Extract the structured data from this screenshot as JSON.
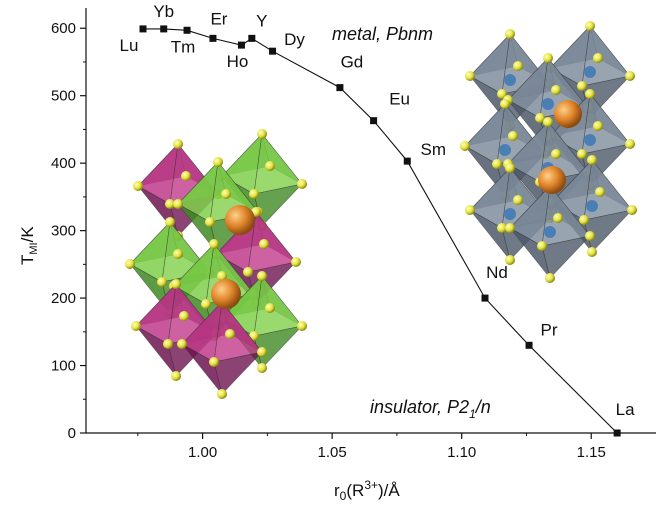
{
  "chart_data": {
    "type": "scatter",
    "x_label_parts": {
      "base": "r",
      "sub": "0",
      "mid": "(R",
      "sup": "3+",
      "tail": ")/Å"
    },
    "y_label_parts": {
      "base": "T",
      "sub": "MI",
      "tail": "/K"
    },
    "xlim": [
      0.955,
      1.175
    ],
    "ylim": [
      0,
      630
    ],
    "x_ticks": [
      "1.00",
      "1.05",
      "1.10",
      "1.15"
    ],
    "x_tick_values": [
      1.0,
      1.05,
      1.1,
      1.15
    ],
    "y_ticks": [
      "0",
      "100",
      "200",
      "300",
      "400",
      "500",
      "600"
    ],
    "y_tick_values": [
      0,
      100,
      200,
      300,
      400,
      500,
      600
    ],
    "grid": false,
    "series": [
      {
        "points": [
          {
            "label": "Lu",
            "x": 0.977,
            "y": 599
          },
          {
            "label": "Yb",
            "x": 0.985,
            "y": 599
          },
          {
            "label": "Tm",
            "x": 0.994,
            "y": 597
          },
          {
            "label": "Er",
            "x": 1.004,
            "y": 585
          },
          {
            "label": "Ho",
            "x": 1.015,
            "y": 575
          },
          {
            "label": "Y",
            "x": 1.019,
            "y": 585
          },
          {
            "label": "Dy",
            "x": 1.027,
            "y": 566
          },
          {
            "label": "Gd",
            "x": 1.053,
            "y": 512
          },
          {
            "label": "Eu",
            "x": 1.066,
            "y": 463
          },
          {
            "label": "Sm",
            "x": 1.079,
            "y": 403
          },
          {
            "label": "Nd",
            "x": 1.109,
            "y": 200
          },
          {
            "label": "Pr",
            "x": 1.126,
            "y": 130
          },
          {
            "label": "La",
            "x": 1.16,
            "y": 0
          }
        ]
      }
    ],
    "annotations": {
      "metal": "metal, Pbnm",
      "insulator_main": "insulator, P2",
      "insulator_sub": "1",
      "insulator_tail": "/n"
    },
    "colors": {
      "line": "#111111",
      "octa_magenta": "#b0287a",
      "octa_green": "#6cc23a",
      "octa_gray": "#6f7d8e",
      "vertex_yellow": "#e4e23c",
      "cation_orange": "#e0852a",
      "center_blue": "#4a7fb5"
    },
    "insets": [
      "green-magenta-perovskite-structure",
      "gray-perovskite-structure"
    ]
  }
}
